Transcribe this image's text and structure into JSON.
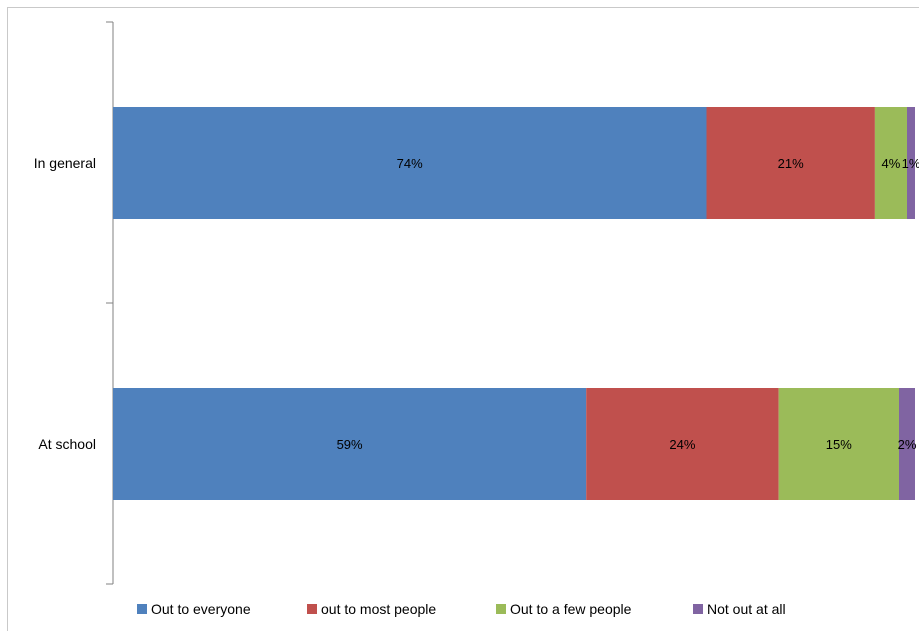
{
  "chart_data": {
    "type": "bar",
    "orientation": "horizontal",
    "stacked": true,
    "categories": [
      "In general",
      "At school"
    ],
    "series": [
      {
        "name": "Out to everyone",
        "values": [
          74,
          59
        ],
        "labels": [
          "74%",
          "59%"
        ],
        "color": "#4f81bd"
      },
      {
        "name": "out to most people",
        "values": [
          21,
          24
        ],
        "labels": [
          "21%",
          "24%"
        ],
        "color": "#c0504d"
      },
      {
        "name": "Out to a few people",
        "values": [
          4,
          15
        ],
        "labels": [
          "4%",
          "15%"
        ],
        "color": "#9bbb59"
      },
      {
        "name": "Not out at all",
        "values": [
          1,
          2
        ],
        "labels": [
          "1%",
          "2%"
        ],
        "color": "#8064a2"
      }
    ],
    "xlim": [
      0,
      100
    ],
    "grid": false,
    "legend": "bottom"
  }
}
